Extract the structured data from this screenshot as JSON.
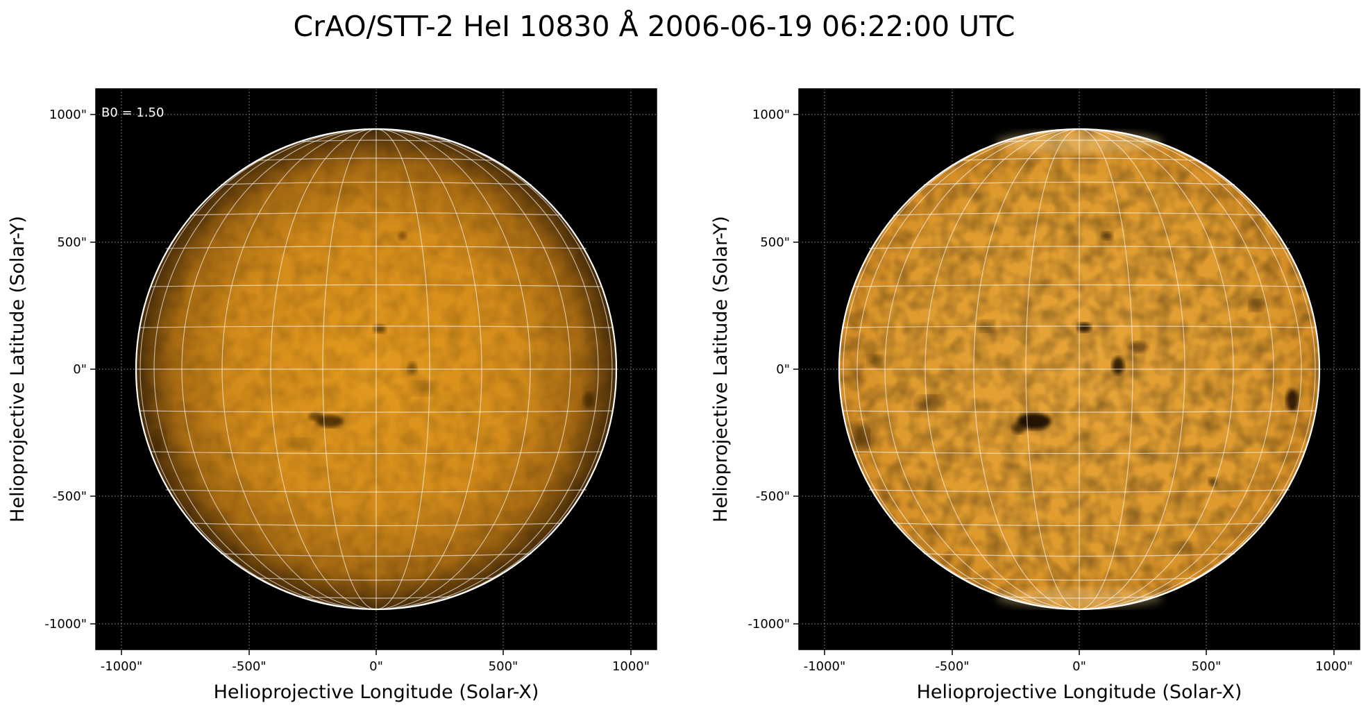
{
  "figure": {
    "title": "CrAO/STT-2 HeI 10830 Å 2006-06-19 06:22:00 UTC"
  },
  "panels": [
    {
      "id": "left",
      "inset_label": "B0 = 1.50",
      "xlabel": "Helioprojective Longitude (Solar-X)",
      "ylabel": "Helioprojective Latitude (Solar-Y)",
      "xticks": [
        "-1000\"",
        "-500\"",
        "0\"",
        "500\"",
        "1000\""
      ],
      "yticks": [
        "1000\"",
        "500\"",
        "0\"",
        "-500\"",
        "-1000\""
      ],
      "disk_colors": {
        "center": "#e39a1e",
        "mid": "#c8821a",
        "limb": "#4a2d08"
      }
    },
    {
      "id": "right",
      "inset_label": "",
      "xlabel": "Helioprojective Longitude (Solar-X)",
      "ylabel": "Helioprojective Latitude (Solar-Y)",
      "xticks": [
        "-1000\"",
        "-500\"",
        "0\"",
        "500\"",
        "1000\""
      ],
      "yticks": [
        "1000\"",
        "500\"",
        "0\"",
        "-500\"",
        "-1000\""
      ],
      "disk_colors": {
        "center": "#e6a23a",
        "mid": "#dd9a30",
        "limb": "#cf8a24"
      }
    }
  ],
  "colors": {
    "background": "#000000",
    "grid_lines": "#ffffff",
    "limb_outline": "#ffffff"
  },
  "icons": {
    "dark_features": "dark-absorption-features"
  }
}
